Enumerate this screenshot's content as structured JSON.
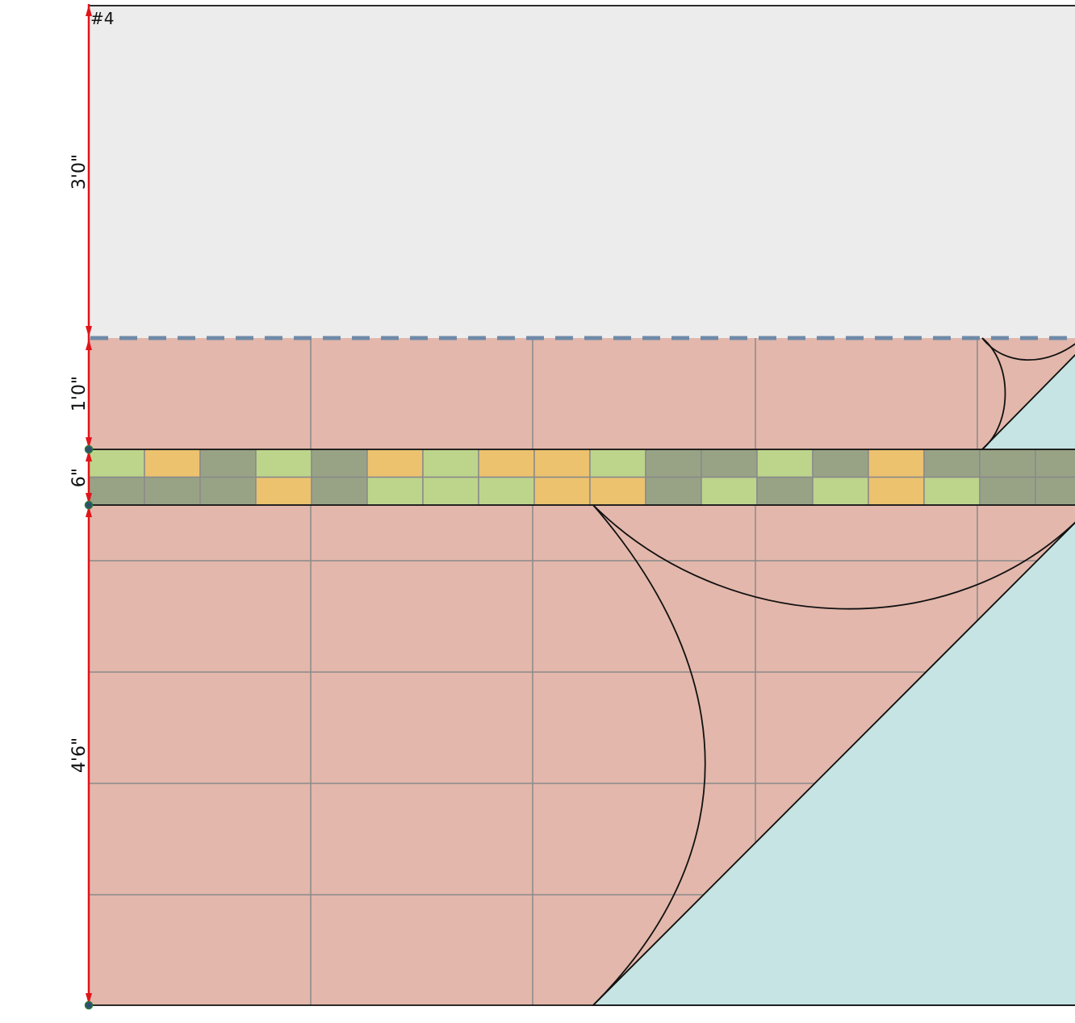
{
  "wall": {
    "label": "#4",
    "colors": {
      "upper_wall": "#ececec",
      "wall_tile": "#e3b7ab",
      "glass": "#c5e4e3",
      "grout": "#8a8a8a",
      "outline": "#111111",
      "dimension": "#e0141b",
      "dashed_line": "#6f8aa8",
      "endpoint": "#2f4f6f"
    }
  },
  "dimensions": [
    {
      "id": "upper",
      "label": "3'0\""
    },
    {
      "id": "band",
      "label": "1'0\""
    },
    {
      "id": "accent",
      "label": "6\""
    },
    {
      "id": "lower",
      "label": "4'6\""
    }
  ],
  "accent_strip": {
    "tile_colors": {
      "G": "#bdd58b",
      "O": "#ecc26f",
      "D": "#98a386"
    },
    "rows": [
      [
        "G",
        "O",
        "D",
        "G",
        "D",
        "O",
        "G",
        "O",
        "O",
        "G",
        "D",
        "D",
        "G",
        "D",
        "O",
        "D",
        "D",
        "D"
      ],
      [
        "D",
        "D",
        "D",
        "O",
        "D",
        "G",
        "G",
        "G",
        "O",
        "O",
        "D",
        "G",
        "D",
        "G",
        "O",
        "G",
        "D",
        "D"
      ]
    ]
  }
}
